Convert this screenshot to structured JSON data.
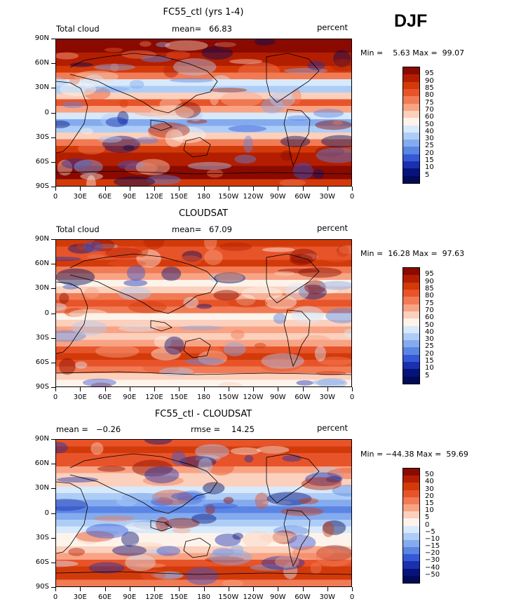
{
  "season": "DJF",
  "panels": [
    {
      "title": "FC55_ctl (yrs 1-4)",
      "left_label": "Total cloud",
      "stat1_label": "mean=",
      "stat1_value": "66.83",
      "stat2_label": "",
      "stat2_value": "",
      "right_label": "percent",
      "minmax": "Min =    5.63 Max =  99.07",
      "levels": [
        "95",
        "90",
        "85",
        "80",
        "75",
        "70",
        "60",
        "50",
        "40",
        "30",
        "25",
        "20",
        "15",
        "10",
        "5"
      ]
    },
    {
      "title": "CLOUDSAT",
      "left_label": "Total cloud",
      "stat1_label": "mean=",
      "stat1_value": "67.09",
      "stat2_label": "",
      "stat2_value": "",
      "right_label": "percent",
      "minmax": "Min =  16.28 Max =  97.63",
      "levels": [
        "95",
        "90",
        "85",
        "80",
        "75",
        "70",
        "60",
        "50",
        "40",
        "30",
        "25",
        "20",
        "15",
        "10",
        "5"
      ]
    },
    {
      "title": "FC55_ctl - CLOUDSAT",
      "left_label": "",
      "stat1_label": "mean =",
      "stat1_value": "−0.26",
      "stat2_label": "rmse =",
      "stat2_value": "14.25",
      "right_label": "percent",
      "minmax": "Min = −44.38 Max =  59.69",
      "levels": [
        "50",
        "40",
        "30",
        "20",
        "15",
        "10",
        "5",
        "0",
        "−5",
        "−10",
        "−15",
        "−20",
        "−30",
        "−40",
        "−50"
      ]
    }
  ],
  "lat_labels": [
    "90N",
    "60N",
    "30N",
    "0",
    "30S",
    "60S",
    "90S"
  ],
  "lon_labels": [
    "0",
    "30E",
    "60E",
    "90E",
    "120E",
    "150E",
    "180",
    "150W",
    "120W",
    "90W",
    "60W",
    "30W",
    "0"
  ],
  "colors": {
    "cb_fill": [
      "#8a0a00",
      "#b41e00",
      "#d33a0a",
      "#e8542a",
      "#f17b55",
      "#f8a384",
      "#fbd0bd",
      "#fdf3ea",
      "#d7e9fb",
      "#aecdf6",
      "#84abee",
      "#5b85e3",
      "#3559d6",
      "#1a30b0",
      "#06137a",
      "#020a5a"
    ]
  }
}
